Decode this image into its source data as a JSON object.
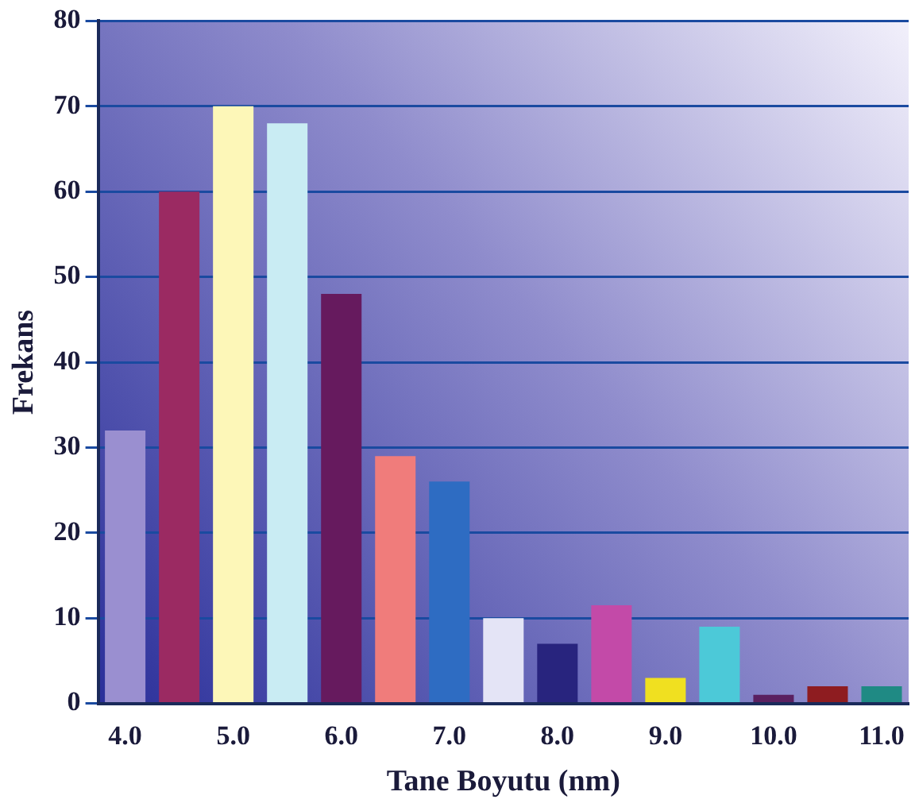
{
  "chart_data": {
    "type": "bar",
    "xlabel": "Tane Boyutu (nm)",
    "ylabel": "Frekans",
    "categories": [
      "4.0",
      null,
      "5.0",
      null,
      "6.0",
      null,
      "7.0",
      null,
      "8.0",
      null,
      "9.0",
      null,
      "10.0",
      null,
      "11.0"
    ],
    "values": [
      32,
      60,
      70,
      68,
      48,
      29,
      26,
      10,
      7,
      11.5,
      3,
      9,
      1,
      2,
      2
    ],
    "colors": [
      "#9a8fd0",
      "#9b2a62",
      "#fdf7b8",
      "#c9ecf3",
      "#661a5e",
      "#f07c7b",
      "#2e6cc2",
      "#e4e4f6",
      "#28247e",
      "#c34aa8",
      "#f0e020",
      "#4cc9d8",
      "#5a2060",
      "#8e1c20",
      "#1f8a84"
    ],
    "ylim": [
      0,
      80
    ],
    "yticks": [
      0,
      10,
      20,
      30,
      40,
      50,
      60,
      70,
      80
    ],
    "grid": "y",
    "legend": false
  }
}
